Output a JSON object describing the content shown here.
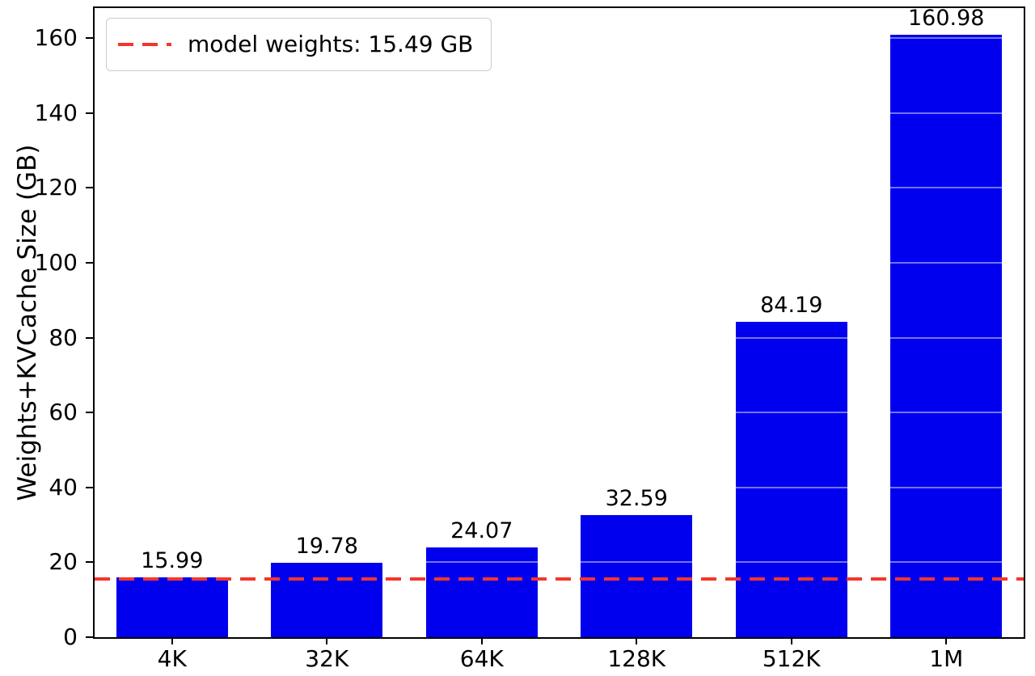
{
  "chart_data": {
    "type": "bar",
    "categories": [
      "4K",
      "32K",
      "64K",
      "128K",
      "512K",
      "1M"
    ],
    "values": [
      15.99,
      19.78,
      24.07,
      32.59,
      84.19,
      160.98
    ],
    "bar_labels": [
      "15.99",
      "19.78",
      "24.07",
      "32.59",
      "84.19",
      "160.98"
    ],
    "title": "",
    "xlabel": "",
    "ylabel": "Weights+KVCache Size (GB)",
    "ylim": [
      0,
      168
    ],
    "yticks": [
      0,
      20,
      40,
      60,
      80,
      100,
      120,
      140,
      160
    ],
    "grid": true,
    "legend_position": "upper-left",
    "bar_color": "#0000ee",
    "threshold_line": {
      "value": 15.49,
      "label": "model weights: 15.49 GB",
      "style": "dashed",
      "color": "#f3362a"
    }
  }
}
